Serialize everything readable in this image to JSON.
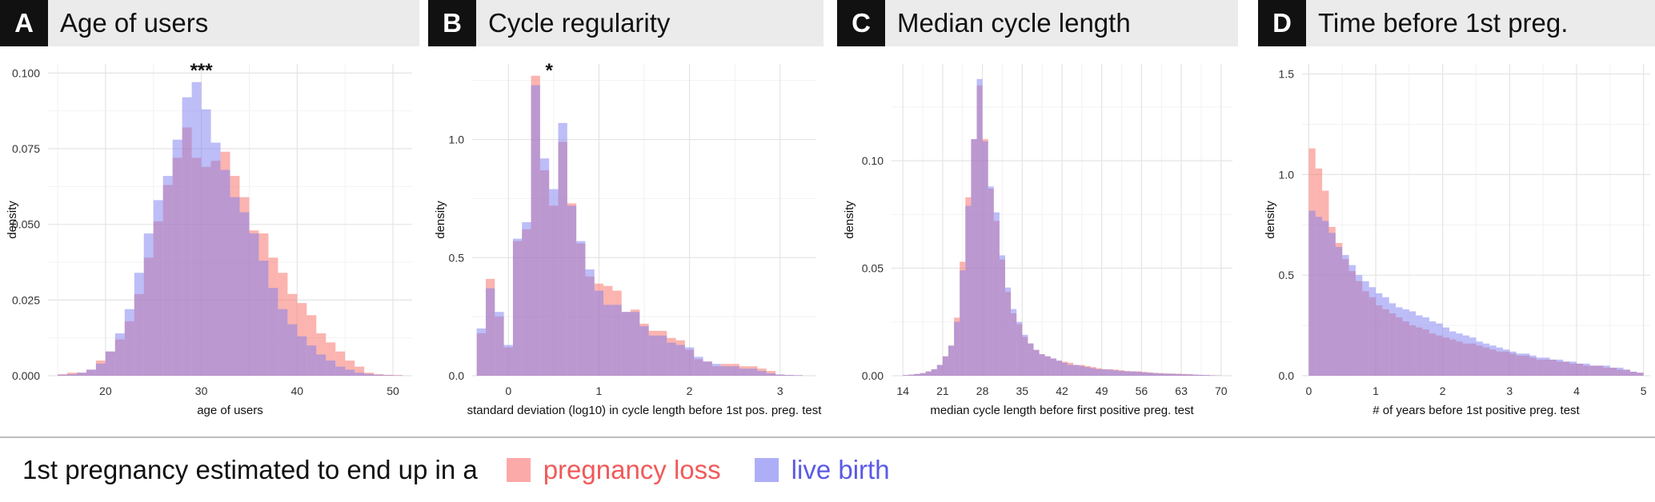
{
  "colors": {
    "pregnancy_loss": "#f8766d",
    "live_birth": "#7b7bf2",
    "overlap": "#b04aa6"
  },
  "legend": {
    "title": "1st pregnancy estimated to end up in a",
    "items": [
      {
        "key": "pregnancy_loss",
        "label": "pregnancy loss"
      },
      {
        "key": "live_birth",
        "label": "live birth"
      }
    ]
  },
  "chart_data": [
    {
      "panel": "A",
      "title": "Age of users",
      "type": "bar",
      "xlabel": "age of users",
      "ylabel": "density",
      "annotation": "***",
      "xlim": [
        14,
        52
      ],
      "ylim": [
        0,
        0.103
      ],
      "xticks": [
        20,
        30,
        40,
        50
      ],
      "yticks": [
        0,
        0.025,
        0.05,
        0.075,
        0.1
      ],
      "ytick_labels": [
        "0.000",
        "0.025",
        "0.050",
        "0.075",
        "0.100"
      ],
      "bins": {
        "start": 15,
        "width": 1
      },
      "series": [
        {
          "key": "pregnancy_loss",
          "values": [
            0.0005,
            0.001,
            0.001,
            0.002,
            0.005,
            0.008,
            0.012,
            0.018,
            0.027,
            0.039,
            0.051,
            0.063,
            0.072,
            0.082,
            0.072,
            0.069,
            0.071,
            0.074,
            0.066,
            0.059,
            0.048,
            0.047,
            0.039,
            0.034,
            0.027,
            0.024,
            0.02,
            0.014,
            0.011,
            0.008,
            0.005,
            0.003,
            0.001,
            0.0005,
            0.0003,
            0.0002
          ]
        },
        {
          "key": "live_birth",
          "values": [
            0.0003,
            0.0005,
            0.001,
            0.002,
            0.004,
            0.008,
            0.014,
            0.022,
            0.034,
            0.047,
            0.058,
            0.066,
            0.078,
            0.092,
            0.097,
            0.088,
            0.077,
            0.068,
            0.059,
            0.054,
            0.047,
            0.038,
            0.029,
            0.022,
            0.017,
            0.013,
            0.01,
            0.007,
            0.005,
            0.003,
            0.002,
            0.001,
            0.0006,
            0.0003,
            0.0002,
            0.0001
          ]
        }
      ]
    },
    {
      "panel": "B",
      "title": "Cycle regularity",
      "type": "bar",
      "xlabel": "standard deviation (log10) in cycle length before 1st pos. preg. test",
      "ylabel": "density",
      "annotation": "*",
      "xlim": [
        -0.4,
        3.4
      ],
      "ylim": [
        0,
        1.32
      ],
      "xticks": [
        0,
        1,
        2,
        3
      ],
      "yticks": [
        0,
        0.5,
        1.0
      ],
      "ytick_labels": [
        "0.0",
        "0.5",
        "1.0"
      ],
      "bins": {
        "start": -0.35,
        "width": 0.1
      },
      "series": [
        {
          "key": "pregnancy_loss",
          "values": [
            0.18,
            0.41,
            0.25,
            0.12,
            0.57,
            0.62,
            1.27,
            0.87,
            0.72,
            0.99,
            0.73,
            0.56,
            0.42,
            0.39,
            0.38,
            0.36,
            0.27,
            0.28,
            0.22,
            0.19,
            0.19,
            0.16,
            0.15,
            0.11,
            0.07,
            0.06,
            0.04,
            0.05,
            0.05,
            0.04,
            0.04,
            0.03,
            0.02,
            0.005,
            0.003,
            0.002
          ]
        },
        {
          "key": "live_birth",
          "values": [
            0.2,
            0.37,
            0.27,
            0.13,
            0.58,
            0.65,
            1.23,
            0.92,
            0.79,
            1.07,
            0.72,
            0.57,
            0.45,
            0.36,
            0.3,
            0.3,
            0.27,
            0.27,
            0.21,
            0.17,
            0.17,
            0.14,
            0.13,
            0.12,
            0.08,
            0.06,
            0.05,
            0.04,
            0.04,
            0.03,
            0.03,
            0.02,
            0.01,
            0.005,
            0.003,
            0.002
          ]
        }
      ]
    },
    {
      "panel": "C",
      "title": "Median cycle length",
      "type": "bar",
      "xlabel": "median cycle length before first positive preg. test",
      "ylabel": "density",
      "xlim": [
        12,
        72
      ],
      "ylim": [
        0,
        0.145
      ],
      "xticks": [
        14,
        21,
        28,
        35,
        42,
        49,
        56,
        63,
        70
      ],
      "yticks": [
        0,
        0.05,
        0.1
      ],
      "ytick_labels": [
        "0.00",
        "0.05",
        "0.10"
      ],
      "bins": {
        "start": 14,
        "width": 1
      },
      "series": [
        {
          "key": "pregnancy_loss",
          "values": [
            0.0003,
            0.0005,
            0.0008,
            0.0012,
            0.002,
            0.003,
            0.005,
            0.009,
            0.014,
            0.027,
            0.053,
            0.083,
            0.11,
            0.135,
            0.11,
            0.087,
            0.072,
            0.054,
            0.039,
            0.029,
            0.024,
            0.018,
            0.015,
            0.012,
            0.01,
            0.009,
            0.008,
            0.007,
            0.0065,
            0.006,
            0.005,
            0.005,
            0.0045,
            0.004,
            0.0035,
            0.003,
            0.003,
            0.0028,
            0.0025,
            0.0022,
            0.002,
            0.002,
            0.0018,
            0.0015,
            0.0013,
            0.0012,
            0.001,
            0.001,
            0.0009,
            0.0008,
            0.0007,
            0.0005,
            0.0004,
            0.0003,
            0.0002,
            0.0001
          ]
        },
        {
          "key": "live_birth",
          "values": [
            0.0003,
            0.0005,
            0.0008,
            0.0012,
            0.002,
            0.003,
            0.005,
            0.009,
            0.014,
            0.025,
            0.049,
            0.079,
            0.11,
            0.138,
            0.109,
            0.088,
            0.076,
            0.056,
            0.041,
            0.031,
            0.025,
            0.019,
            0.015,
            0.012,
            0.01,
            0.009,
            0.008,
            0.007,
            0.006,
            0.005,
            0.005,
            0.0045,
            0.004,
            0.0035,
            0.003,
            0.003,
            0.0028,
            0.0025,
            0.0022,
            0.002,
            0.002,
            0.0018,
            0.0015,
            0.0014,
            0.0012,
            0.001,
            0.001,
            0.0009,
            0.0008,
            0.0007,
            0.0006,
            0.0005,
            0.0004,
            0.0003,
            0.0002,
            0.0001
          ]
        }
      ]
    },
    {
      "panel": "D",
      "title": "Time before 1st preg.",
      "type": "bar",
      "xlabel": "# of years before 1st positive preg. test",
      "ylabel": "density",
      "xlim": [
        -0.1,
        5.1
      ],
      "ylim": [
        0,
        1.55
      ],
      "xticks": [
        0,
        1,
        2,
        3,
        4,
        5
      ],
      "yticks": [
        0,
        0.5,
        1.0,
        1.5
      ],
      "ytick_labels": [
        "0.0",
        "0.5",
        "1.0",
        "1.5"
      ],
      "bins": {
        "start": 0,
        "width": 0.1
      },
      "series": [
        {
          "key": "pregnancy_loss",
          "values": [
            1.13,
            1.03,
            0.92,
            0.74,
            0.66,
            0.58,
            0.52,
            0.47,
            0.42,
            0.39,
            0.35,
            0.33,
            0.31,
            0.29,
            0.27,
            0.25,
            0.24,
            0.23,
            0.21,
            0.2,
            0.19,
            0.18,
            0.17,
            0.16,
            0.16,
            0.15,
            0.14,
            0.13,
            0.12,
            0.12,
            0.11,
            0.1,
            0.1,
            0.09,
            0.08,
            0.08,
            0.08,
            0.07,
            0.07,
            0.06,
            0.06,
            0.05,
            0.05,
            0.05,
            0.04,
            0.04,
            0.03,
            0.03,
            0.02,
            0.015
          ]
        },
        {
          "key": "live_birth",
          "values": [
            0.82,
            0.79,
            0.77,
            0.71,
            0.64,
            0.6,
            0.55,
            0.5,
            0.47,
            0.44,
            0.41,
            0.39,
            0.36,
            0.34,
            0.33,
            0.32,
            0.3,
            0.29,
            0.27,
            0.26,
            0.24,
            0.22,
            0.21,
            0.2,
            0.19,
            0.17,
            0.16,
            0.15,
            0.14,
            0.13,
            0.12,
            0.11,
            0.11,
            0.1,
            0.09,
            0.09,
            0.08,
            0.08,
            0.07,
            0.07,
            0.06,
            0.06,
            0.05,
            0.05,
            0.05,
            0.04,
            0.04,
            0.03,
            0.02,
            0.015
          ]
        }
      ]
    }
  ]
}
